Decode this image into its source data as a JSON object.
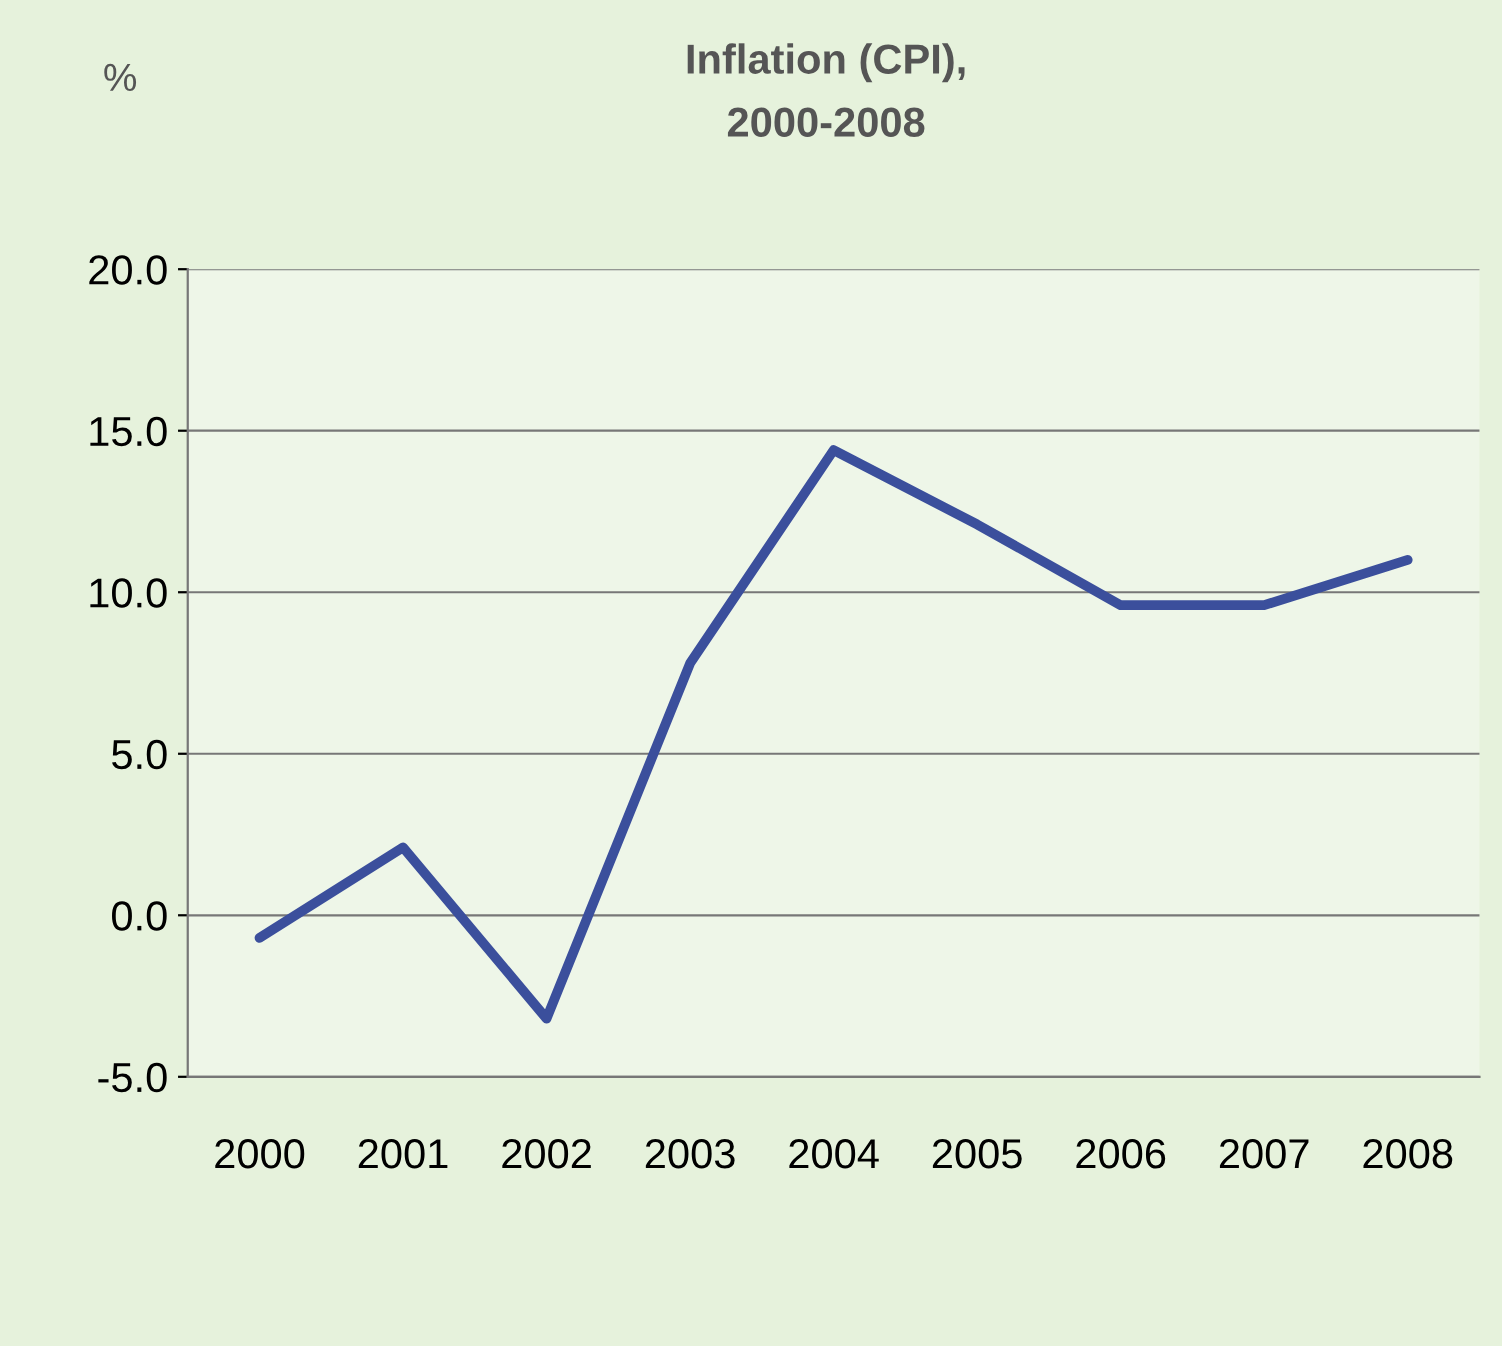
{
  "chart_data": {
    "type": "line",
    "title": "Inflation (CPI),\n2000-2008",
    "ylabel": "%",
    "categories": [
      "2000",
      "2001",
      "2002",
      "2003",
      "2004",
      "2005",
      "2006",
      "2007",
      "2008"
    ],
    "series": [
      {
        "color": "#3b4f9c",
        "values": [
          -0.7,
          2.1,
          -3.2,
          7.8,
          14.4,
          12.1,
          9.6,
          9.6,
          11.0
        ]
      }
    ],
    "ylim": [
      -5.0,
      20.0
    ],
    "yticks": [
      {
        "value": -5,
        "label": "-5.0"
      },
      {
        "value": 0,
        "label": "0.0"
      },
      {
        "value": 5,
        "label": "5.0"
      },
      {
        "value": 10,
        "label": "10.0"
      },
      {
        "value": 15,
        "label": "15.0"
      },
      {
        "value": 20,
        "label": "20.0"
      }
    ],
    "grid": "y",
    "legend": false,
    "marker": "none",
    "line_style": "solid"
  }
}
